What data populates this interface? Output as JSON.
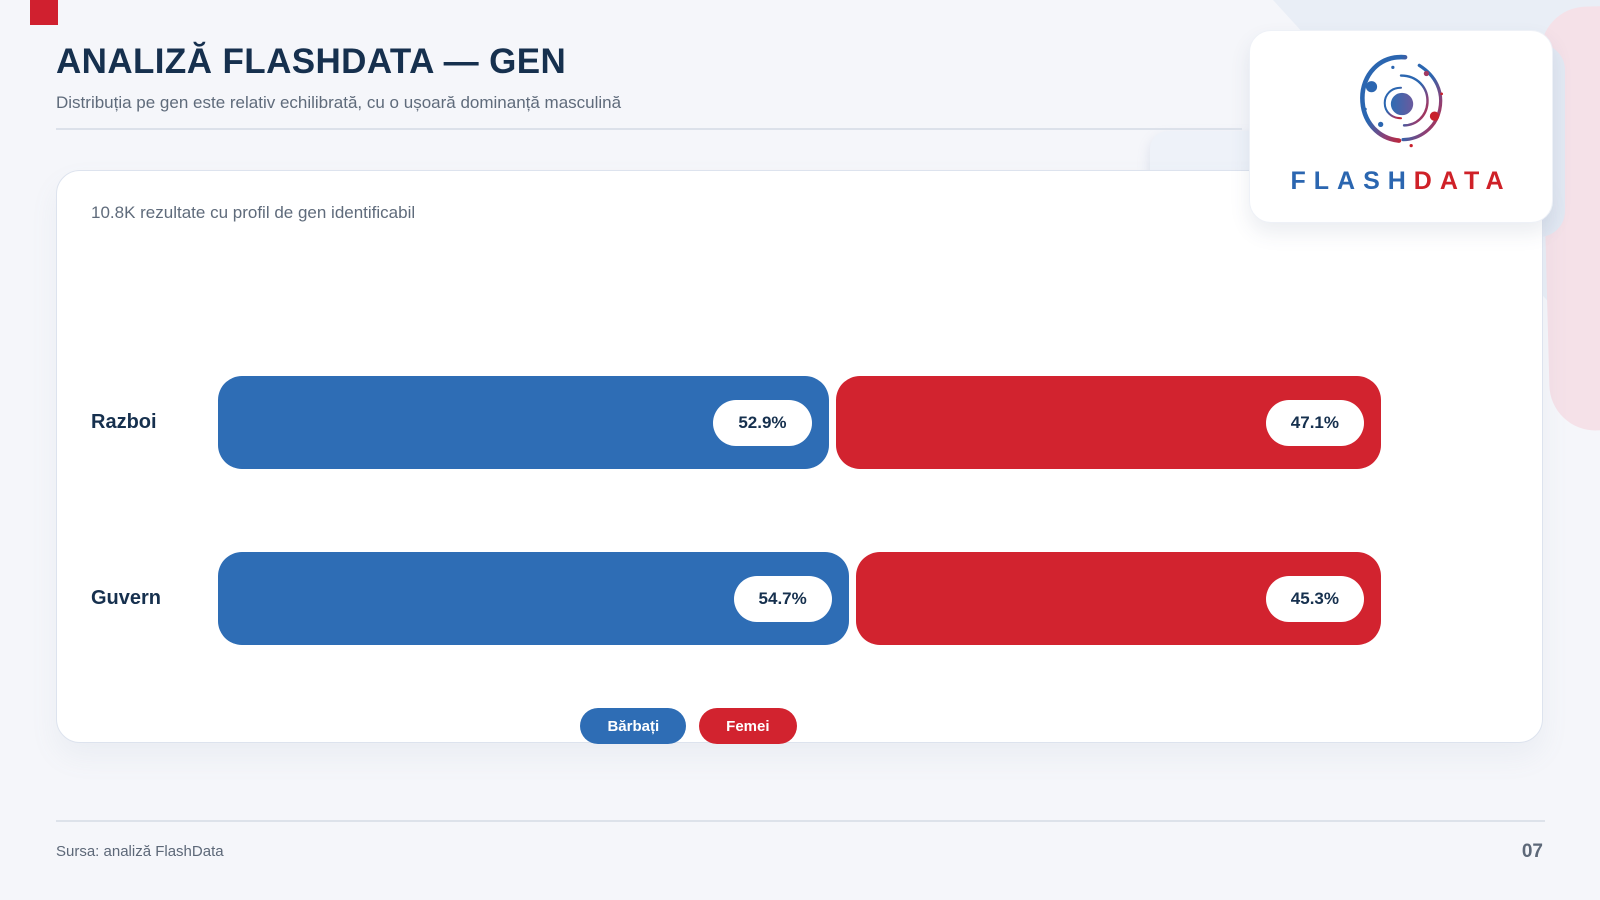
{
  "header": {
    "title": "ANALIZĂ FLASHDATA — GEN",
    "subtitle": "Distribuția pe gen este relativ echilibrată, cu o ușoară dominanță masculină"
  },
  "logo": {
    "flash": "FLASH",
    "data": "DATA"
  },
  "chart_data": {
    "type": "bar",
    "orientation": "horizontal",
    "stacked": true,
    "unit": "percent",
    "title": "10.8K rezultate cu profil de gen identificabil",
    "categories": [
      "Razboi",
      "Guvern"
    ],
    "series": [
      {
        "key": "male",
        "name": "Bărbați",
        "color": "#2e6db5",
        "values": [
          52.9,
          54.7
        ]
      },
      {
        "key": "female",
        "name": "Femei",
        "color": "#d2232f",
        "values": [
          47.1,
          45.3
        ]
      }
    ],
    "value_labels": [
      [
        "52.9%",
        "47.1%"
      ],
      [
        "54.7%",
        "45.3%"
      ]
    ],
    "xlim": [
      0,
      100
    ],
    "grid": false,
    "legend_position": "bottom"
  },
  "footer": {
    "source": "Sursa: analiză FlashData",
    "page_number": "07"
  },
  "colors": {
    "male_blue": "#2e6db5",
    "female_red": "#d2232f",
    "navy": "#16304e",
    "background": "#f5f6fa",
    "pink_decoration": "#f5e1e8",
    "band_decoration": "#e9eef6"
  }
}
